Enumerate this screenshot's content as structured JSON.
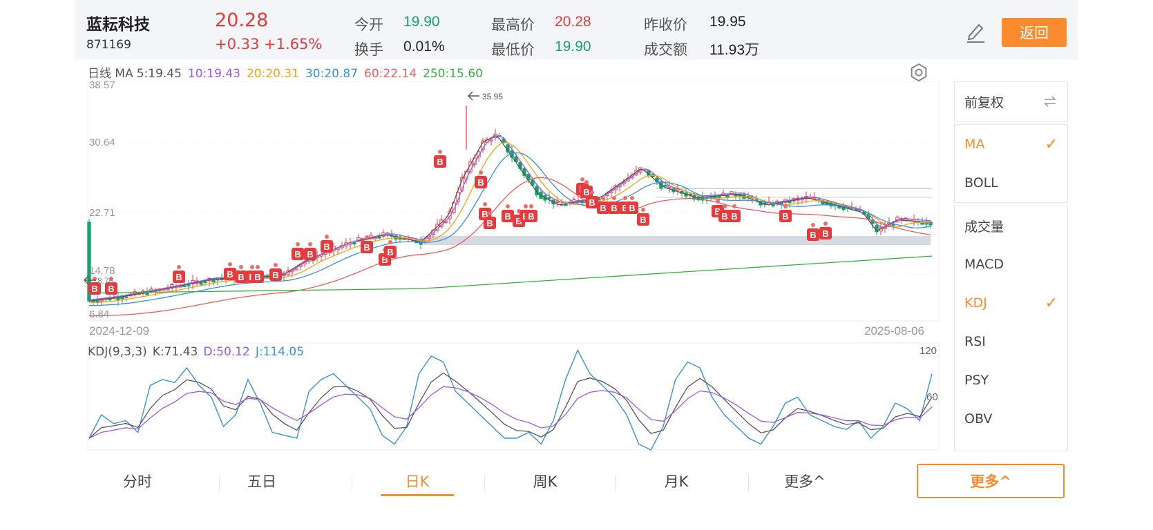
{
  "header": {
    "stock_name": "蓝耘科技",
    "stock_code": "871169",
    "price": "20.28",
    "change": "+0.33 +1.65%",
    "open_label": "今开",
    "open": "19.90",
    "high_label": "最高价",
    "high": "20.28",
    "prev_close_label": "昨收价",
    "prev_close": "19.95",
    "turnover_label": "换手",
    "turnover": "0.01%",
    "low_label": "最低价",
    "low": "19.90",
    "amount_label": "成交额",
    "amount": "11.93万",
    "back_label": "返回",
    "edit_icon": "pencil-icon"
  },
  "ma": {
    "prefix": "日线 MA",
    "ma5": "5:19.45",
    "ma10": "10:19.43",
    "ma20": "20:20.31",
    "ma30": "30:20.87",
    "ma60": "60:22.14",
    "ma250": "250:15.60",
    "colors": {
      "ma5": "#555555",
      "ma10": "#9b59e8",
      "ma20": "#f5a313",
      "ma30": "#3a8fdc",
      "ma60": "#f05b5b",
      "ma250": "#33b13d"
    }
  },
  "chart": {
    "y_ticks": [
      "38.57",
      "30.64",
      "22.71",
      "14.78",
      "6.84"
    ],
    "peak_marker": "35.95",
    "low_marker": "8.76",
    "start_date": "2024-12-09",
    "end_date": "2025-08-06",
    "buy_label": "B",
    "settings_icon": "settings-icon"
  },
  "kdj": {
    "title": "KDJ(9,3,3)",
    "k": "K:71.43",
    "d": "D:50.12",
    "j": "J:114.05",
    "y_top": "120",
    "y_mid": "60",
    "colors": {
      "k": "#555555",
      "d": "#9b59e8",
      "j": "#3a8fdc"
    }
  },
  "side_panel": {
    "fq_label": "前复权",
    "indicators_main": [
      {
        "label": "MA",
        "active": true
      },
      {
        "label": "BOLL",
        "active": false
      }
    ],
    "indicators_sub": [
      {
        "label": "成交量",
        "active": false
      },
      {
        "label": "MACD",
        "active": false
      },
      {
        "label": "KDJ",
        "active": true
      },
      {
        "label": "RSI",
        "active": false
      },
      {
        "label": "PSY",
        "active": false
      },
      {
        "label": "OBV",
        "active": false
      }
    ]
  },
  "tabs": [
    {
      "label": "分时",
      "active": false
    },
    {
      "label": "五日",
      "active": false
    },
    {
      "label": "日K",
      "active": true
    },
    {
      "label": "周K",
      "active": false
    },
    {
      "label": "月K",
      "active": false
    },
    {
      "label": "更多^",
      "active": false
    }
  ],
  "more_button": "更多^",
  "colors": {
    "accent": "#fb8b2d",
    "up": "#e8393c",
    "down": "#16a36a"
  }
}
